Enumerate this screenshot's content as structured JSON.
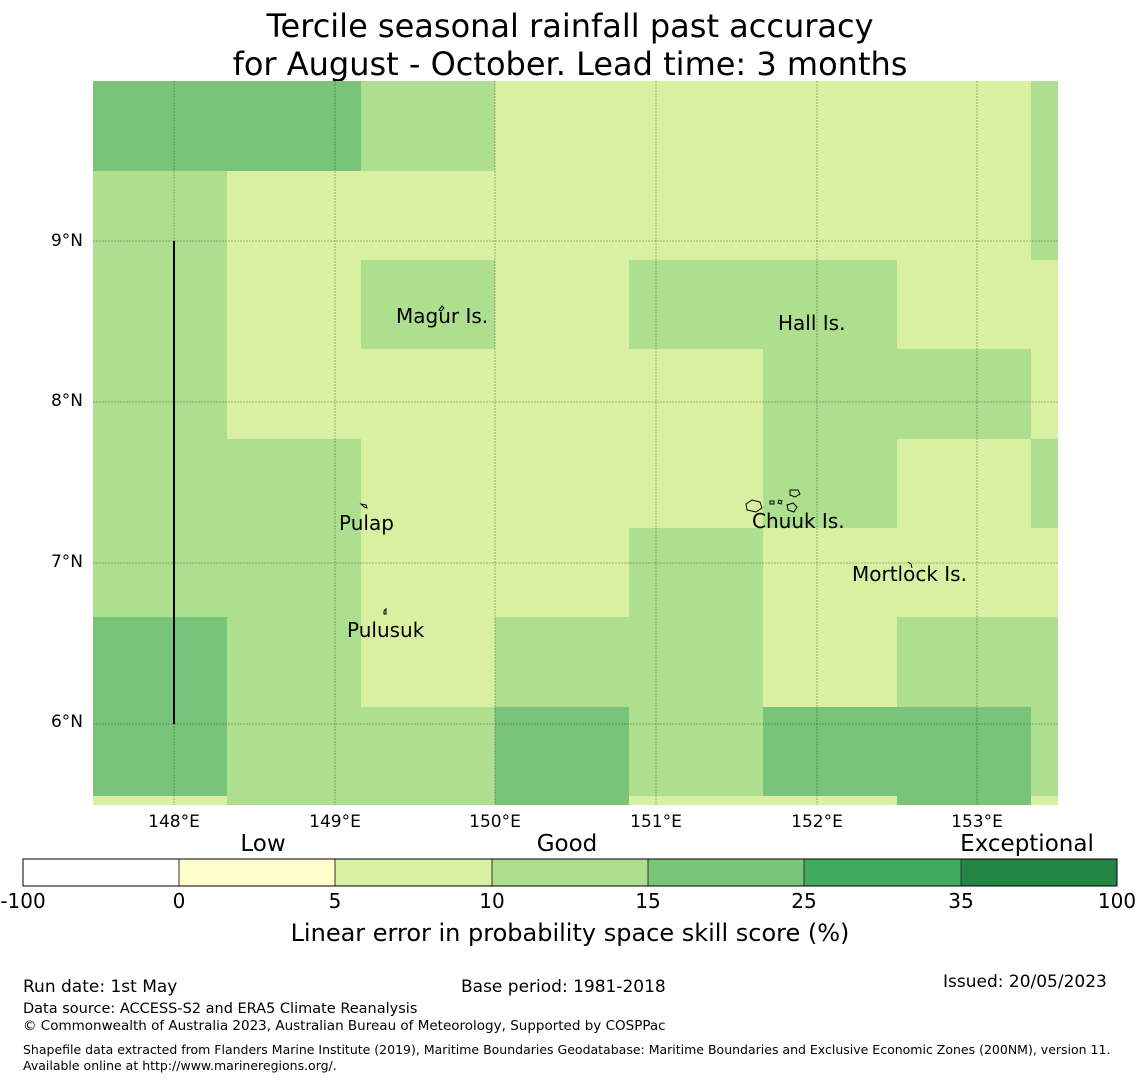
{
  "title": {
    "line1": "Tercile seasonal rainfall past accuracy",
    "line2": "for August - October. Lead time: 3 months"
  },
  "map": {
    "lat_ticks": [
      "9°N",
      "8°N",
      "7°N",
      "6°N"
    ],
    "lon_ticks": [
      "148°E",
      "149°E",
      "150°E",
      "151°E",
      "152°E",
      "153°E"
    ],
    "places": {
      "magur": "Magur Is.",
      "hall": "Hall Is.",
      "pulap": "Pulap",
      "chuuk": "Chuuk Is.",
      "mortlock": "Mortlock Is.",
      "pulusuk": "Pulusuk"
    },
    "category_colors": {
      "c5_10": "#d9efa1",
      "c10_15": "#addf8e",
      "c15_25": "#78c579",
      "c25_35": "#40ab5d",
      "c35_100": "#238644",
      "c0_5": "#fffecc",
      "neg": "#ffffff"
    }
  },
  "colorbar": {
    "category_labels": {
      "low": "Low",
      "good": "Good",
      "exceptional": "Exceptional"
    },
    "ticks": [
      "-100",
      "0",
      "5",
      "10",
      "15",
      "25",
      "35",
      "100"
    ],
    "colors": [
      "#ffffff",
      "#fffecc",
      "#d9efa1",
      "#addf8e",
      "#78c579",
      "#40ab5d",
      "#238644"
    ],
    "title": "Linear error in probability space skill score (%)"
  },
  "footer": {
    "run_date": "Run date: 1st May",
    "base_period": "Base period: 1981-2018",
    "issued": "Issued: 20/05/2023",
    "data_source": "Data source: ACCESS-S2 and ERA5 Climate Reanalysis",
    "copyright": "© Commonwealth of Australia 2023, Australian Bureau of Meteorology, Supported by COSPPac",
    "shapefile": "Shapefile data extracted from Flanders Marine Institute (2019), Maritime Boundaries Geodatabase: Maritime Boundaries and Exclusive Economic Zones (200NM), version 11. Available online at http://www.marineregions.org/."
  }
}
